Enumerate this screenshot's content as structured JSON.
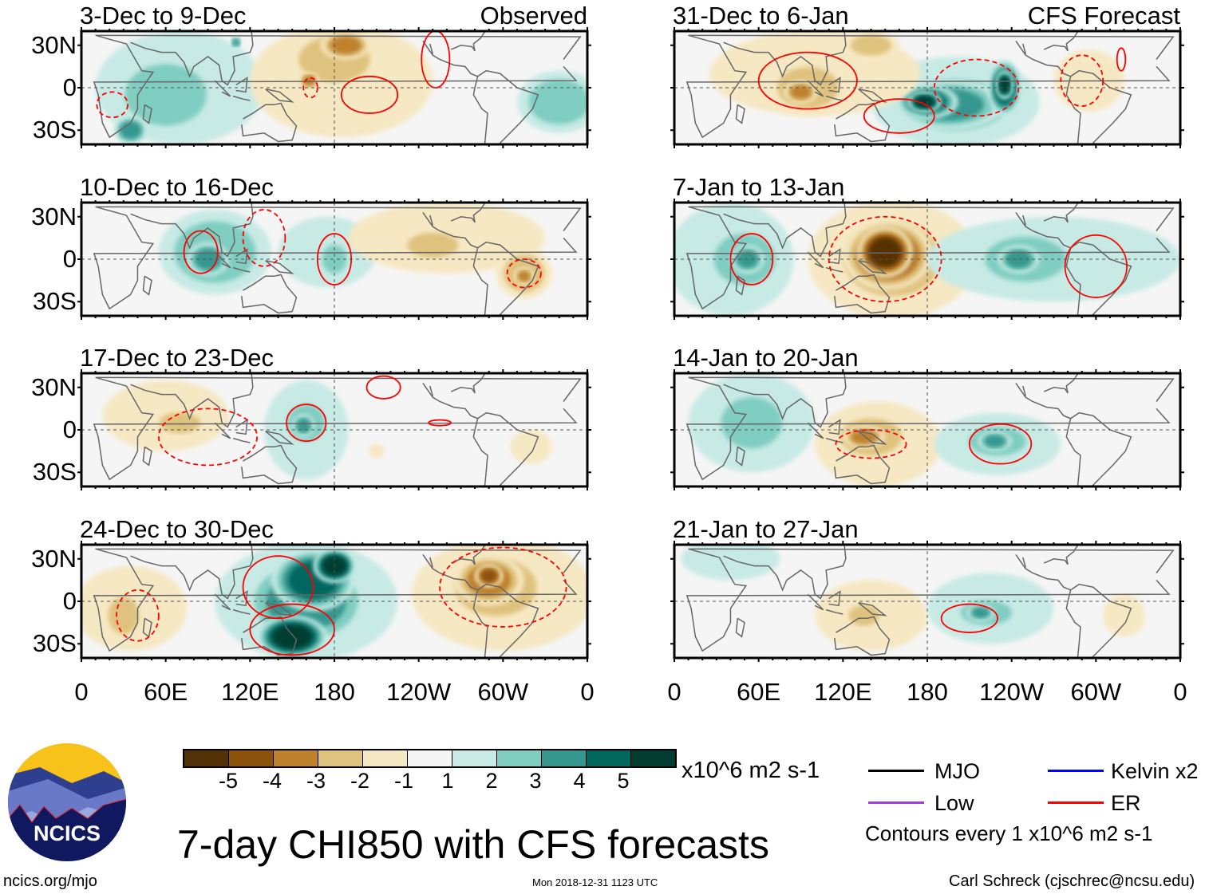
{
  "title": "7-day CHI850 with CFS forecasts",
  "site": "ncics.org/mjo",
  "timestamp": "Mon 2018-12-31 1123 UTC",
  "author": "Carl Schreck (cjschrec@ncsu.edu)",
  "logo_text": "NCICS",
  "units": "x10^6 m2 s-1",
  "contour_note": "Contours every 1 x10^6 m2 s-1",
  "legend": [
    {
      "label": "MJO",
      "color": "#000000"
    },
    {
      "label": "Kelvin x2",
      "color": "#0000ff"
    },
    {
      "label": "Low",
      "color": "#a040e0"
    },
    {
      "label": "ER",
      "color": "#ff0000"
    }
  ],
  "colorbar": {
    "colors": [
      "#543005",
      "#8c510a",
      "#bf812d",
      "#dfc27d",
      "#f6e8c3",
      "#f5f5f5",
      "#c7eae5",
      "#80cdc1",
      "#35978f",
      "#01665e",
      "#003c30"
    ],
    "labels": [
      "-5",
      "-4",
      "-3",
      "-2",
      "-1",
      "1",
      "2",
      "3",
      "4",
      "5"
    ]
  },
  "lat_labels": [
    "30N",
    "0",
    "30S"
  ],
  "lon_labels": [
    "0",
    "60E",
    "120E",
    "180",
    "120W",
    "60W",
    "0"
  ],
  "chart_data": {
    "type": "heatmap",
    "variable": "CHI850 anomaly",
    "lon_range": [
      0,
      360
    ],
    "lat_range": [
      -40,
      40
    ],
    "columns": [
      {
        "header": "Observed"
      },
      {
        "header": "CFS Forecast"
      }
    ],
    "panels": [
      {
        "title": "3-Dec to 9-Dec",
        "col": 0,
        "row": 0,
        "blobs": [
          {
            "lon": 70,
            "lat": 0,
            "rlon": 60,
            "rlat": 40,
            "level": 1
          },
          {
            "lon": 60,
            "lat": -5,
            "rlon": 40,
            "rlat": 30,
            "level": 2
          },
          {
            "lon": 35,
            "lat": -30,
            "rlon": 12,
            "rlat": 10,
            "level": 3
          },
          {
            "lon": 185,
            "lat": 5,
            "rlon": 65,
            "rlat": 40,
            "level": -1
          },
          {
            "lon": 180,
            "lat": 20,
            "rlon": 35,
            "rlat": 22,
            "level": -2
          },
          {
            "lon": 188,
            "lat": 30,
            "rlon": 18,
            "rlat": 10,
            "level": -3
          },
          {
            "lon": 162,
            "lat": 5,
            "rlon": 7,
            "rlat": 6,
            "level": -3
          },
          {
            "lon": 340,
            "lat": -10,
            "rlon": 30,
            "rlat": 22,
            "level": 2
          },
          {
            "lon": 110,
            "lat": 32,
            "rlon": 4,
            "rlat": 4,
            "level": 3
          }
        ],
        "contours": [
          {
            "lon": 205,
            "lat": -5,
            "rlon": 20,
            "rlat": 13,
            "dashed": false
          },
          {
            "lon": 252,
            "lat": 20,
            "rlon": 10,
            "rlat": 20,
            "dashed": false
          },
          {
            "lon": 22,
            "lat": -12,
            "rlon": 11,
            "rlat": 9,
            "dashed": true
          },
          {
            "lon": 163,
            "lat": 0,
            "rlon": 5,
            "rlat": 7,
            "dashed": true
          }
        ]
      },
      {
        "title": "10-Dec to 16-Dec",
        "col": 0,
        "row": 1,
        "blobs": [
          {
            "lon": 95,
            "lat": 5,
            "rlon": 40,
            "rlat": 30,
            "level": 2
          },
          {
            "lon": 90,
            "lat": 0,
            "rlon": 15,
            "rlat": 12,
            "level": 3
          },
          {
            "lon": 175,
            "lat": 5,
            "rlon": 35,
            "rlat": 25,
            "level": 1
          },
          {
            "lon": 180,
            "lat": 0,
            "rlon": 12,
            "rlat": 14,
            "level": 2
          },
          {
            "lon": 260,
            "lat": 15,
            "rlon": 70,
            "rlat": 25,
            "level": -1
          },
          {
            "lon": 250,
            "lat": 10,
            "rlon": 25,
            "rlat": 12,
            "level": -2
          },
          {
            "lon": 315,
            "lat": -10,
            "rlon": 20,
            "rlat": 18,
            "level": -2
          },
          {
            "lon": 315,
            "lat": -12,
            "rlon": 7,
            "rlat": 6,
            "level": -3
          }
        ],
        "contours": [
          {
            "lon": 180,
            "lat": 0,
            "rlon": 12,
            "rlat": 18,
            "dashed": false
          },
          {
            "lon": 85,
            "lat": 5,
            "rlon": 12,
            "rlat": 15,
            "dashed": false
          },
          {
            "lon": 315,
            "lat": -10,
            "rlon": 12,
            "rlat": 10,
            "dashed": true
          },
          {
            "lon": 130,
            "lat": 15,
            "rlon": 15,
            "rlat": 20,
            "dashed": true
          }
        ]
      },
      {
        "title": "17-Dec to 23-Dec",
        "col": 0,
        "row": 2,
        "blobs": [
          {
            "lon": 60,
            "lat": 10,
            "rlon": 45,
            "rlat": 25,
            "level": -1
          },
          {
            "lon": 70,
            "lat": 5,
            "rlon": 20,
            "rlat": 10,
            "level": -2
          },
          {
            "lon": 160,
            "lat": 0,
            "rlon": 30,
            "rlat": 35,
            "level": 1
          },
          {
            "lon": 160,
            "lat": 5,
            "rlon": 18,
            "rlat": 18,
            "level": 2
          },
          {
            "lon": 158,
            "lat": 3,
            "rlon": 8,
            "rlat": 8,
            "level": 3
          },
          {
            "lon": 320,
            "lat": -12,
            "rlon": 15,
            "rlat": 12,
            "level": -1
          },
          {
            "lon": 210,
            "lat": -15,
            "rlon": 6,
            "rlat": 5,
            "level": -1
          }
        ],
        "contours": [
          {
            "lon": 160,
            "lat": 5,
            "rlon": 14,
            "rlat": 13,
            "dashed": false
          },
          {
            "lon": 215,
            "lat": 30,
            "rlon": 12,
            "rlat": 8,
            "dashed": false
          },
          {
            "lon": 255,
            "lat": 5,
            "rlon": 8,
            "rlat": 2,
            "dashed": false
          },
          {
            "lon": 90,
            "lat": -5,
            "rlon": 35,
            "rlat": 20,
            "dashed": true
          }
        ]
      },
      {
        "title": "24-Dec to 30-Dec",
        "col": 0,
        "row": 3,
        "blobs": [
          {
            "lon": 160,
            "lat": 0,
            "rlon": 65,
            "rlat": 42,
            "level": 1
          },
          {
            "lon": 160,
            "lat": 0,
            "rlon": 55,
            "rlat": 38,
            "level": 2
          },
          {
            "lon": 160,
            "lat": 0,
            "rlon": 45,
            "rlat": 32,
            "level": 3
          },
          {
            "lon": 165,
            "lat": 15,
            "rlon": 30,
            "rlat": 22,
            "level": 4
          },
          {
            "lon": 150,
            "lat": -25,
            "rlon": 25,
            "rlat": 15,
            "level": 5
          },
          {
            "lon": 180,
            "lat": 25,
            "rlon": 15,
            "rlat": 12,
            "level": 5
          },
          {
            "lon": 35,
            "lat": -5,
            "rlon": 40,
            "rlat": 30,
            "level": -1
          },
          {
            "lon": 30,
            "lat": -10,
            "rlon": 15,
            "rlat": 18,
            "level": -2
          },
          {
            "lon": 300,
            "lat": 5,
            "rlon": 65,
            "rlat": 40,
            "level": -1
          },
          {
            "lon": 295,
            "lat": 10,
            "rlon": 40,
            "rlat": 28,
            "level": -2
          },
          {
            "lon": 290,
            "lat": 15,
            "rlon": 25,
            "rlat": 18,
            "level": -3
          },
          {
            "lon": 290,
            "lat": 18,
            "rlon": 10,
            "rlat": 8,
            "level": -4
          }
        ],
        "contours": [
          {
            "lon": 140,
            "lat": 10,
            "rlon": 25,
            "rlat": 22,
            "dashed": false
          },
          {
            "lon": 150,
            "lat": -20,
            "rlon": 30,
            "rlat": 18,
            "dashed": false
          },
          {
            "lon": 40,
            "lat": -10,
            "rlon": 15,
            "rlat": 18,
            "dashed": true
          },
          {
            "lon": 300,
            "lat": 10,
            "rlon": 45,
            "rlat": 28,
            "dashed": true
          }
        ]
      },
      {
        "title": "31-Dec to 6-Jan",
        "col": 1,
        "row": 0,
        "blobs": [
          {
            "lon": 200,
            "lat": -10,
            "rlon": 60,
            "rlat": 32,
            "level": 1
          },
          {
            "lon": 200,
            "lat": -12,
            "rlon": 50,
            "rlat": 25,
            "level": 2
          },
          {
            "lon": 195,
            "lat": -12,
            "rlon": 40,
            "rlat": 18,
            "level": 3
          },
          {
            "lon": 180,
            "lat": -10,
            "rlon": 22,
            "rlat": 12,
            "level": 4
          },
          {
            "lon": 178,
            "lat": -10,
            "rlon": 12,
            "rlat": 7,
            "level": 5
          },
          {
            "lon": 235,
            "lat": 0,
            "rlon": 12,
            "rlat": 20,
            "level": 4
          },
          {
            "lon": 235,
            "lat": 2,
            "rlon": 6,
            "rlat": 10,
            "level": 5
          },
          {
            "lon": 100,
            "lat": 10,
            "rlon": 75,
            "rlat": 30,
            "level": -1
          },
          {
            "lon": 95,
            "lat": 0,
            "rlon": 30,
            "rlat": 20,
            "level": -2
          },
          {
            "lon": 90,
            "lat": -3,
            "rlon": 12,
            "rlat": 8,
            "level": -3
          },
          {
            "lon": 140,
            "lat": 30,
            "rlon": 20,
            "rlat": 10,
            "level": -2
          },
          {
            "lon": 295,
            "lat": 5,
            "rlon": 25,
            "rlat": 22,
            "level": -1
          }
        ],
        "contours": [
          {
            "lon": 95,
            "lat": 5,
            "rlon": 35,
            "rlat": 20,
            "dashed": false
          },
          {
            "lon": 160,
            "lat": -20,
            "rlon": 25,
            "rlat": 12,
            "dashed": false
          },
          {
            "lon": 215,
            "lat": 0,
            "rlon": 30,
            "rlat": 20,
            "dashed": true
          },
          {
            "lon": 290,
            "lat": 5,
            "rlon": 15,
            "rlat": 18,
            "dashed": true
          },
          {
            "lon": 318,
            "lat": 20,
            "rlon": 3,
            "rlat": 8,
            "dashed": false
          }
        ]
      },
      {
        "title": "7-Jan to 13-Jan",
        "col": 1,
        "row": 1,
        "blobs": [
          {
            "lon": 155,
            "lat": 0,
            "rlon": 60,
            "rlat": 42,
            "level": -1
          },
          {
            "lon": 155,
            "lat": 0,
            "rlon": 50,
            "rlat": 38,
            "level": -2
          },
          {
            "lon": 155,
            "lat": 0,
            "rlon": 42,
            "rlat": 32,
            "level": -3
          },
          {
            "lon": 152,
            "lat": 3,
            "rlon": 32,
            "rlat": 25,
            "level": -4
          },
          {
            "lon": 150,
            "lat": 5,
            "rlon": 20,
            "rlat": 18,
            "level": -5
          },
          {
            "lon": 40,
            "lat": 0,
            "rlon": 45,
            "rlat": 40,
            "level": 1
          },
          {
            "lon": 50,
            "lat": 0,
            "rlon": 30,
            "rlat": 25,
            "level": 2
          },
          {
            "lon": 52,
            "lat": 0,
            "rlon": 12,
            "rlat": 10,
            "level": 3
          },
          {
            "lon": 270,
            "lat": 0,
            "rlon": 90,
            "rlat": 30,
            "level": 1
          },
          {
            "lon": 250,
            "lat": 0,
            "rlon": 40,
            "rlat": 22,
            "level": 2
          },
          {
            "lon": 245,
            "lat": 0,
            "rlon": 15,
            "rlat": 10,
            "level": 3
          }
        ],
        "contours": [
          {
            "lon": 55,
            "lat": 0,
            "rlon": 15,
            "rlat": 18,
            "dashed": false
          },
          {
            "lon": 300,
            "lat": -5,
            "rlon": 22,
            "rlat": 22,
            "dashed": false
          },
          {
            "lon": 150,
            "lat": 0,
            "rlon": 40,
            "rlat": 30,
            "dashed": true
          }
        ]
      },
      {
        "title": "14-Jan to 20-Jan",
        "col": 1,
        "row": 2,
        "blobs": [
          {
            "lon": 55,
            "lat": 5,
            "rlon": 45,
            "rlat": 35,
            "level": 1
          },
          {
            "lon": 55,
            "lat": 5,
            "rlon": 30,
            "rlat": 25,
            "level": 2
          },
          {
            "lon": 145,
            "lat": -10,
            "rlon": 45,
            "rlat": 30,
            "level": -1
          },
          {
            "lon": 140,
            "lat": -5,
            "rlon": 30,
            "rlat": 18,
            "level": -2
          },
          {
            "lon": 135,
            "lat": -5,
            "rlon": 15,
            "rlat": 8,
            "level": -3
          },
          {
            "lon": 230,
            "lat": -10,
            "rlon": 45,
            "rlat": 22,
            "level": 1
          },
          {
            "lon": 230,
            "lat": -8,
            "rlon": 28,
            "rlat": 14,
            "level": 2
          },
          {
            "lon": 228,
            "lat": -8,
            "rlon": 12,
            "rlat": 7,
            "level": 3
          }
        ],
        "contours": [
          {
            "lon": 232,
            "lat": -10,
            "rlon": 22,
            "rlat": 14,
            "dashed": false
          },
          {
            "lon": 140,
            "lat": -10,
            "rlon": 25,
            "rlat": 10,
            "dashed": true
          }
        ]
      },
      {
        "title": "21-Jan to 27-Jan",
        "col": 1,
        "row": 3,
        "blobs": [
          {
            "lon": 40,
            "lat": 30,
            "rlon": 35,
            "rlat": 15,
            "level": 1
          },
          {
            "lon": 140,
            "lat": -10,
            "rlon": 40,
            "rlat": 25,
            "level": -1
          },
          {
            "lon": 135,
            "lat": -10,
            "rlon": 15,
            "rlat": 10,
            "level": -2
          },
          {
            "lon": 225,
            "lat": -5,
            "rlon": 45,
            "rlat": 25,
            "level": 1
          },
          {
            "lon": 222,
            "lat": -8,
            "rlon": 25,
            "rlat": 12,
            "level": 2
          },
          {
            "lon": 218,
            "lat": -8,
            "rlon": 10,
            "rlat": 6,
            "level": 3
          },
          {
            "lon": 320,
            "lat": -10,
            "rlon": 15,
            "rlat": 15,
            "level": -1
          }
        ],
        "contours": [
          {
            "lon": 210,
            "lat": -12,
            "rlon": 20,
            "rlat": 10,
            "dashed": false
          }
        ]
      }
    ]
  }
}
